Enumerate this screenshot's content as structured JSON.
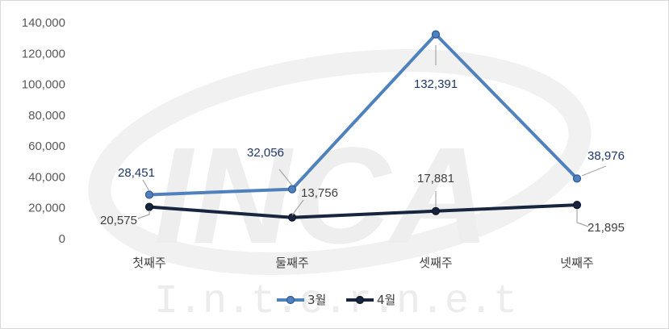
{
  "chart_data": {
    "type": "line",
    "categories": [
      "첫째주",
      "둘째주",
      "셋째주",
      "넷째주"
    ],
    "series": [
      {
        "name": "3월",
        "values": [
          28451,
          32056,
          132391,
          38976
        ],
        "color": "#4f81bd",
        "label_color": "#1f3864"
      },
      {
        "name": "4월",
        "values": [
          20575,
          13756,
          17881,
          21895
        ],
        "color": "#17253f",
        "label_color": "#404040"
      }
    ],
    "data_labels": {
      "3월": [
        "28,451",
        "32,056",
        "132,391",
        "38,976"
      ],
      "4월": [
        "20,575",
        "13,756",
        "17,881",
        "21,895"
      ]
    },
    "yticks": [
      "0",
      "20,000",
      "40,000",
      "60,000",
      "80,000",
      "100,000",
      "120,000",
      "140,000"
    ],
    "ylim": [
      0,
      140000
    ],
    "grid": false,
    "legend_position": "bottom",
    "title": "",
    "xlabel": "",
    "ylabel": ""
  },
  "watermark": {
    "logo": "INCA",
    "text": "I.n.t.e.r.n.e.t"
  }
}
